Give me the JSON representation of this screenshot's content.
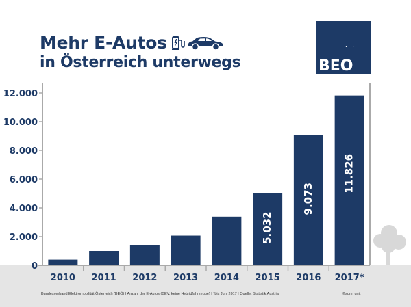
{
  "header": {
    "title_line1": "Mehr E-Autos",
    "title_line2": "in Österreich unterwegs"
  },
  "logo": {
    "text": "BEO",
    "dots": ". ."
  },
  "footer": {
    "source": "Bundesverband Elektromobilität Österreich (BEÖ) | Anzahl der E-Autos (BEV, keine Hybridfahrzeuge) | *bis Juni 2017 | Quelle: Statistik Austria",
    "credit": "©som_unit"
  },
  "icons": [
    "charging-station-icon",
    "car-icon",
    "tree-icon"
  ],
  "colors": {
    "bar": "#1d3a66",
    "text": "#1d3a66",
    "axis": "#aaaaaa",
    "ground": "#e5e5e5"
  },
  "chart_data": {
    "type": "bar",
    "categories": [
      "2010",
      "2011",
      "2012",
      "2013",
      "2014",
      "2015",
      "2016",
      "2017*"
    ],
    "values": [
      400,
      1000,
      1400,
      2070,
      3390,
      5032,
      9073,
      11826
    ],
    "data_labels": [
      "",
      "",
      "",
      "",
      "",
      "5.032",
      "9.073",
      "11.826"
    ],
    "y_ticks": [
      "0",
      "2.000",
      "4.000",
      "6.000",
      "8.000",
      "10.000",
      "12.000"
    ],
    "ylim": [
      0,
      12000
    ],
    "grid": false,
    "title": "Mehr E-Autos in Österreich unterwegs"
  }
}
